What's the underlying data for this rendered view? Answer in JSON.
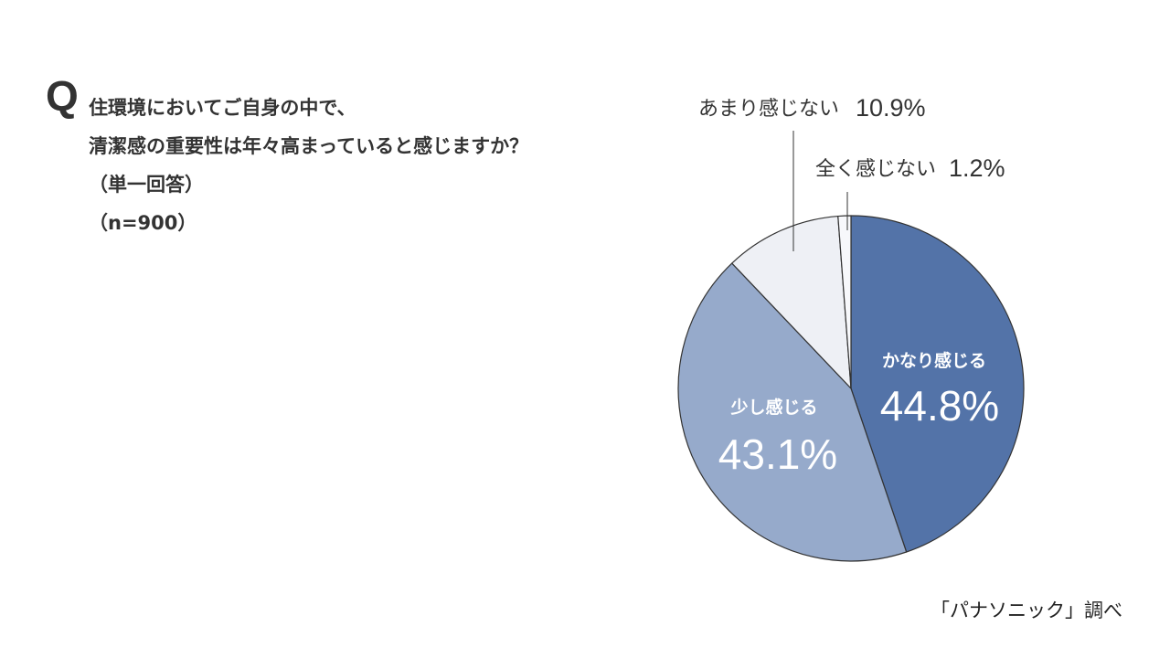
{
  "question": {
    "mark": "Q",
    "lines": [
      "住環境においてご自身の中で、",
      "清潔感の重要性は年々高まっていると感じますか？",
      "（単一回答）",
      "（n=900）"
    ]
  },
  "source": "「パナソニック」調べ",
  "chart_data": {
    "type": "pie",
    "start": "12 o'clock, clockwise",
    "slices": [
      {
        "label": "かなり感じる",
        "value": 44.8,
        "display": "44.8%",
        "color": "#5373a8",
        "label_position": "inside"
      },
      {
        "label": "少し感じる",
        "value": 43.1,
        "display": "43.1%",
        "color": "#96aacb",
        "label_position": "inside"
      },
      {
        "label": "あまり感じない",
        "value": 10.9,
        "display": "10.9%",
        "color": "#eef0f5",
        "label_position": "outside"
      },
      {
        "label": "全く感じない",
        "value": 1.2,
        "display": "1.2%",
        "color": "#f7f8fb",
        "label_position": "outside"
      }
    ],
    "border_color": "#333333"
  }
}
